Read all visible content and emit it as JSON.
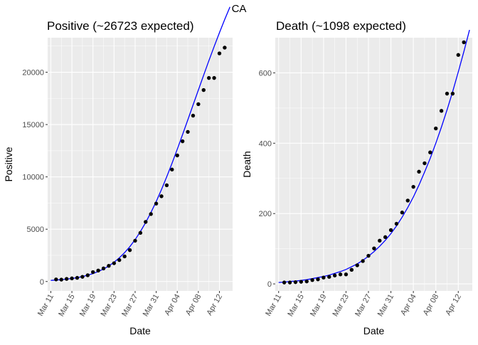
{
  "figure_title": "CA",
  "colors": {
    "panel_bg": "#ebebeb",
    "grid": "#ffffff",
    "fit_line": "#0000ff",
    "points": "#000000",
    "tick_text": "#4d4d4d"
  },
  "chart_data": [
    {
      "type": "scatter",
      "title": "Positive (~26723 expected)",
      "xlabel": "Date",
      "ylabel": "Positive",
      "x_tick_labels": [
        "Mar 11",
        "Mar 15",
        "Mar 19",
        "Mar 23",
        "Mar 27",
        "Mar 31",
        "Apr 04",
        "Apr 08",
        "Apr 12"
      ],
      "x_tick_days": [
        0,
        4,
        8,
        12,
        16,
        20,
        24,
        28,
        32
      ],
      "xlim_days": [
        -0.6,
        34.5
      ],
      "y_ticks": [
        0,
        5000,
        10000,
        15000,
        20000
      ],
      "ylim": [
        -900,
        23300
      ],
      "grid": true,
      "series": [
        {
          "kind": "points",
          "x_days": [
            1,
            2,
            3,
            4,
            5,
            6,
            7,
            8,
            9,
            10,
            11,
            12,
            13,
            14,
            15,
            16,
            17,
            18,
            19,
            20,
            21,
            22,
            23,
            24,
            25,
            26,
            27,
            28,
            29,
            30,
            31,
            32,
            33
          ],
          "values": [
            200,
            180,
            250,
            300,
            350,
            450,
            600,
            900,
            1050,
            1250,
            1500,
            1750,
            2050,
            2400,
            3000,
            3900,
            4650,
            5700,
            6450,
            7450,
            8150,
            9200,
            10700,
            12050,
            13400,
            14300,
            15850,
            16950,
            18300,
            19450,
            19450,
            21800,
            22350
          ]
        },
        {
          "kind": "fit_line",
          "x_days": [
            0,
            1,
            2,
            3,
            4,
            5,
            6,
            7,
            8,
            9,
            10,
            11,
            12,
            13,
            14,
            15,
            16,
            17,
            18,
            19,
            20,
            21,
            22,
            23,
            24,
            25,
            26,
            27,
            28,
            29,
            30,
            31,
            32,
            33,
            34
          ],
          "values": [
            108,
            138,
            178,
            228,
            292,
            373,
            475,
            602,
            760,
            956,
            1196,
            1488,
            1840,
            2260,
            2756,
            3337,
            4008,
            4774,
            5637,
            6596,
            7648,
            8788,
            10007,
            11294,
            12638,
            14025,
            15441,
            16871,
            18302,
            19719,
            21111,
            22467,
            23778,
            25037,
            26239
          ]
        }
      ]
    },
    {
      "type": "scatter",
      "title": "Death (~1098 expected)",
      "xlabel": "Date",
      "ylabel": "Death",
      "x_tick_labels": [
        "Mar 11",
        "Mar 15",
        "Mar 19",
        "Mar 23",
        "Mar 27",
        "Mar 31",
        "Apr 04",
        "Apr 08",
        "Apr 12"
      ],
      "x_tick_days": [
        0,
        4,
        8,
        12,
        16,
        20,
        24,
        28,
        32
      ],
      "xlim_days": [
        -0.6,
        34.5
      ],
      "y_ticks": [
        0,
        200,
        400,
        600
      ],
      "ylim": [
        -20,
        700
      ],
      "grid": true,
      "series": [
        {
          "kind": "points",
          "x_days": [
            1,
            2,
            3,
            4,
            5,
            6,
            7,
            8,
            9,
            10,
            11,
            12,
            13,
            14,
            15,
            16,
            17,
            18,
            19,
            20,
            21,
            22,
            23,
            24,
            25,
            26,
            27,
            28,
            29,
            30,
            31,
            32,
            33
          ],
          "values": [
            4,
            4,
            5,
            6,
            7,
            11,
            13,
            18,
            20,
            24,
            27,
            27,
            40,
            53,
            65,
            80,
            101,
            123,
            133,
            153,
            171,
            203,
            237,
            276,
            319,
            343,
            374,
            442,
            492,
            541,
            541,
            651,
            687
          ]
        },
        {
          "kind": "fit_line",
          "x_days": [
            0,
            1,
            2,
            3,
            4,
            5,
            6,
            7,
            8,
            9,
            10,
            11,
            12,
            13,
            14,
            15,
            16,
            17,
            18,
            19,
            20,
            21,
            22,
            23,
            24,
            25,
            26,
            27,
            28,
            29,
            30,
            31,
            32,
            33,
            34
          ],
          "values": [
            4,
            5,
            7,
            8,
            10,
            12,
            15,
            18,
            21,
            25,
            30,
            35,
            41,
            49,
            57,
            67,
            79,
            92,
            107,
            124,
            143,
            165,
            190,
            217,
            247,
            281,
            318,
            357,
            400,
            446,
            495,
            547,
            603,
            661,
            722
          ]
        }
      ]
    }
  ]
}
